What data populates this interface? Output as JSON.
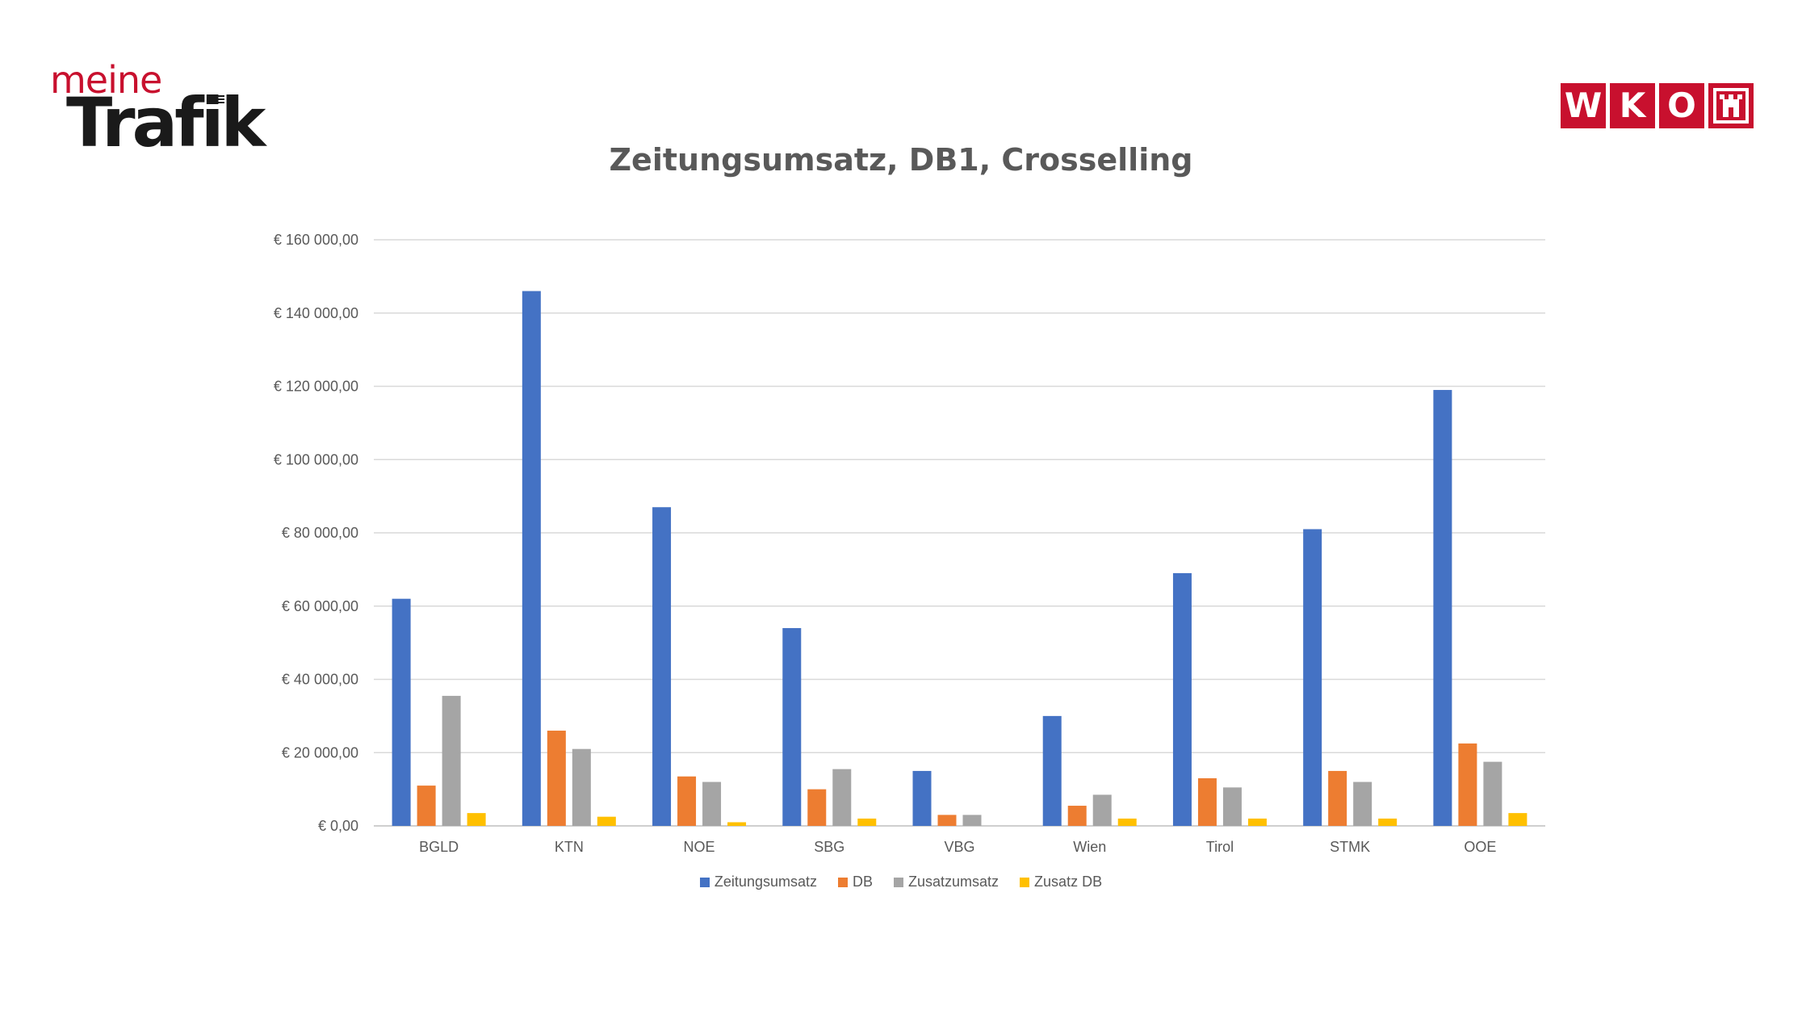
{
  "brand_left": {
    "line1": "meine",
    "line2": "Trafik"
  },
  "brand_right": {
    "letters": [
      "W",
      "K",
      "O"
    ],
    "crest": "upper-austria-crest-icon"
  },
  "colors": {
    "brand_red": "#c8102e",
    "series": [
      "#4472c4",
      "#ed7d31",
      "#a5a5a5",
      "#ffc000"
    ],
    "grid": "#d9d9d9",
    "text": "#595959"
  },
  "chart_data": {
    "type": "bar",
    "title": "Zeitungsumsatz, DB1, Crosselling",
    "categories": [
      "BGLD",
      "KTN",
      "NOE",
      "SBG",
      "VBG",
      "Wien",
      "Tirol",
      "STMK",
      "OOE"
    ],
    "series": [
      {
        "name": "Zeitungsumsatz",
        "values": [
          62000,
          146000,
          87000,
          54000,
          15000,
          30000,
          69000,
          81000,
          119000
        ]
      },
      {
        "name": "DB",
        "values": [
          11000,
          26000,
          13500,
          10000,
          3000,
          5500,
          13000,
          15000,
          22500
        ]
      },
      {
        "name": "Zusatzumsatz",
        "values": [
          35500,
          21000,
          12000,
          15500,
          3000,
          8500,
          10500,
          12000,
          17500
        ]
      },
      {
        "name": "Zusatz DB",
        "values": [
          3500,
          2500,
          1000,
          2000,
          0,
          2000,
          2000,
          2000,
          3500
        ]
      }
    ],
    "ylim": [
      0,
      160000
    ],
    "yticks": [
      "€ 0,00",
      "€ 20 000,00",
      "€ 40 000,00",
      "€ 60 000,00",
      "€ 80 000,00",
      "€ 100 000,00",
      "€ 120 000,00",
      "€ 140 000,00",
      "€ 160 000,00"
    ],
    "grid": true,
    "legend_position": "bottom"
  }
}
